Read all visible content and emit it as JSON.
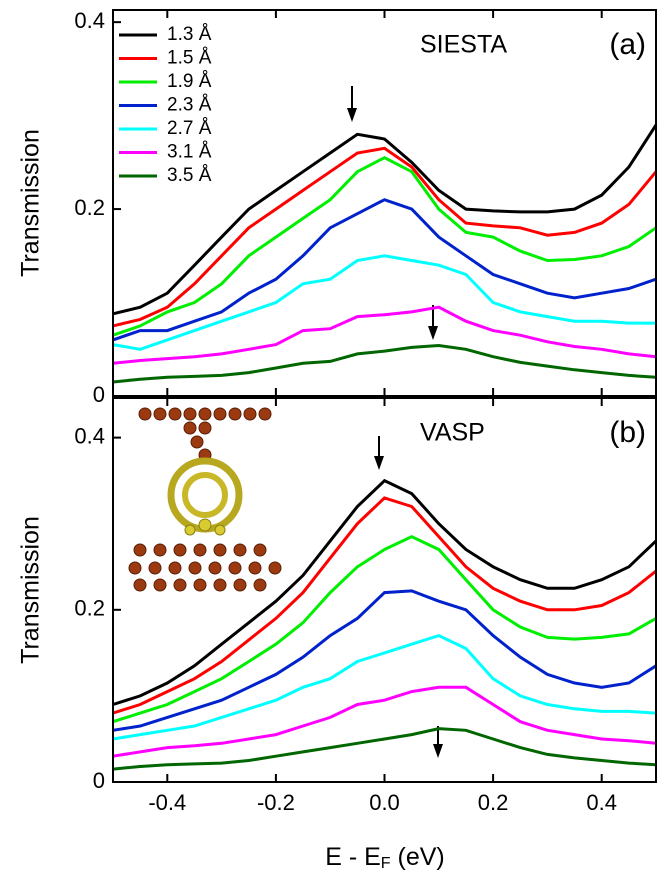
{
  "chart_data": [
    {
      "type": "line",
      "panel_label": "(a)",
      "method": "SIESTA",
      "y_label": "Transmission",
      "x": [
        -0.5,
        -0.45,
        -0.4,
        -0.35,
        -0.3,
        -0.25,
        -0.2,
        -0.15,
        -0.1,
        -0.05,
        0,
        0.05,
        0.1,
        0.15,
        0.2,
        0.25,
        0.3,
        0.35,
        0.4,
        0.45,
        0.5
      ],
      "xlim": [
        -0.5,
        0.5
      ],
      "xticks": [
        -0.4,
        -0.2,
        0,
        0.2,
        0.4
      ],
      "ylim": [
        0,
        0.413
      ],
      "yticks": [
        0,
        0.2,
        0.4
      ],
      "legend": "upper left",
      "series": [
        {
          "name": "1.3 Å",
          "color": "#000000",
          "values": [
            0.088,
            0.095,
            0.11,
            0.14,
            0.17,
            0.2,
            0.22,
            0.24,
            0.26,
            0.28,
            0.275,
            0.25,
            0.22,
            0.2,
            0.198,
            0.197,
            0.197,
            0.2,
            0.215,
            0.245,
            0.29
          ]
        },
        {
          "name": "1.5 Å",
          "color": "#ff0000",
          "values": [
            0.075,
            0.082,
            0.095,
            0.12,
            0.15,
            0.18,
            0.2,
            0.22,
            0.24,
            0.26,
            0.265,
            0.245,
            0.21,
            0.185,
            0.182,
            0.18,
            0.172,
            0.175,
            0.185,
            0.205,
            0.24
          ]
        },
        {
          "name": "1.9 Å",
          "color": "#00ee00",
          "values": [
            0.065,
            0.075,
            0.09,
            0.1,
            0.12,
            0.15,
            0.17,
            0.19,
            0.21,
            0.24,
            0.255,
            0.24,
            0.2,
            0.175,
            0.17,
            0.155,
            0.145,
            0.146,
            0.15,
            0.16,
            0.18
          ]
        },
        {
          "name": "2.3 Å",
          "color": "#0022cc",
          "values": [
            0.06,
            0.07,
            0.07,
            0.08,
            0.09,
            0.11,
            0.125,
            0.15,
            0.18,
            0.195,
            0.21,
            0.2,
            0.17,
            0.15,
            0.13,
            0.12,
            0.11,
            0.105,
            0.11,
            0.115,
            0.125
          ]
        },
        {
          "name": "2.7 Å",
          "color": "#00ffff",
          "values": [
            0.055,
            0.05,
            0.06,
            0.07,
            0.08,
            0.09,
            0.1,
            0.12,
            0.125,
            0.145,
            0.15,
            0.145,
            0.14,
            0.13,
            0.1,
            0.09,
            0.085,
            0.08,
            0.08,
            0.078,
            0.078
          ]
        },
        {
          "name": "3.1 Å",
          "color": "#ff00ff",
          "values": [
            0.035,
            0.038,
            0.04,
            0.042,
            0.045,
            0.05,
            0.055,
            0.07,
            0.072,
            0.085,
            0.087,
            0.09,
            0.095,
            0.08,
            0.07,
            0.065,
            0.058,
            0.053,
            0.05,
            0.045,
            0.042
          ]
        },
        {
          "name": "3.5 Å",
          "color": "#006600",
          "values": [
            0.015,
            0.018,
            0.02,
            0.021,
            0.022,
            0.025,
            0.03,
            0.035,
            0.037,
            0.045,
            0.048,
            0.052,
            0.054,
            0.05,
            0.042,
            0.036,
            0.032,
            0.028,
            0.025,
            0.022,
            0.02
          ]
        }
      ]
    },
    {
      "type": "line",
      "panel_label": "(b)",
      "method": "VASP",
      "y_label": "Transmission",
      "x_label": [
        "E - E",
        "F",
        " (eV)"
      ],
      "x": [
        -0.5,
        -0.45,
        -0.4,
        -0.35,
        -0.3,
        -0.25,
        -0.2,
        -0.15,
        -0.1,
        -0.05,
        0,
        0.05,
        0.1,
        0.15,
        0.2,
        0.25,
        0.3,
        0.35,
        0.4,
        0.45,
        0.5
      ],
      "xlim": [
        -0.5,
        0.5
      ],
      "xticks": [
        -0.4,
        -0.2,
        {
          "value": 0,
          "label": "0.0"
        },
        0.2,
        0.4
      ],
      "ylim": [
        0,
        0.446
      ],
      "yticks": [
        0,
        0.2,
        0.4
      ],
      "series": [
        {
          "color": "#000000",
          "values": [
            0.09,
            0.1,
            0.115,
            0.135,
            0.16,
            0.185,
            0.21,
            0.24,
            0.28,
            0.32,
            0.35,
            0.335,
            0.3,
            0.27,
            0.25,
            0.235,
            0.225,
            0.225,
            0.235,
            0.25,
            0.28
          ]
        },
        {
          "color": "#ff0000",
          "values": [
            0.08,
            0.09,
            0.105,
            0.12,
            0.14,
            0.165,
            0.19,
            0.22,
            0.26,
            0.3,
            0.33,
            0.32,
            0.285,
            0.25,
            0.225,
            0.21,
            0.2,
            0.2,
            0.205,
            0.22,
            0.245
          ]
        },
        {
          "color": "#00ee00",
          "values": [
            0.07,
            0.08,
            0.09,
            0.105,
            0.12,
            0.14,
            0.16,
            0.185,
            0.22,
            0.25,
            0.27,
            0.285,
            0.27,
            0.235,
            0.2,
            0.18,
            0.168,
            0.166,
            0.168,
            0.172,
            0.19
          ]
        },
        {
          "color": "#0022cc",
          "values": [
            0.06,
            0.065,
            0.075,
            0.085,
            0.095,
            0.11,
            0.125,
            0.145,
            0.17,
            0.19,
            0.22,
            0.222,
            0.21,
            0.2,
            0.17,
            0.145,
            0.125,
            0.115,
            0.11,
            0.115,
            0.135
          ]
        },
        {
          "color": "#00ffff",
          "values": [
            0.05,
            0.055,
            0.06,
            0.065,
            0.075,
            0.085,
            0.095,
            0.11,
            0.12,
            0.14,
            0.15,
            0.16,
            0.17,
            0.155,
            0.12,
            0.1,
            0.09,
            0.085,
            0.082,
            0.082,
            0.08
          ]
        },
        {
          "color": "#ff00ff",
          "values": [
            0.03,
            0.035,
            0.04,
            0.042,
            0.045,
            0.05,
            0.055,
            0.065,
            0.075,
            0.09,
            0.095,
            0.105,
            0.11,
            0.11,
            0.09,
            0.07,
            0.06,
            0.055,
            0.05,
            0.048,
            0.045
          ]
        },
        {
          "color": "#006600",
          "values": [
            0.015,
            0.018,
            0.02,
            0.021,
            0.022,
            0.025,
            0.03,
            0.035,
            0.04,
            0.045,
            0.05,
            0.055,
            0.062,
            0.06,
            0.05,
            0.04,
            0.032,
            0.028,
            0.025,
            0.022,
            0.02
          ]
        }
      ]
    }
  ]
}
